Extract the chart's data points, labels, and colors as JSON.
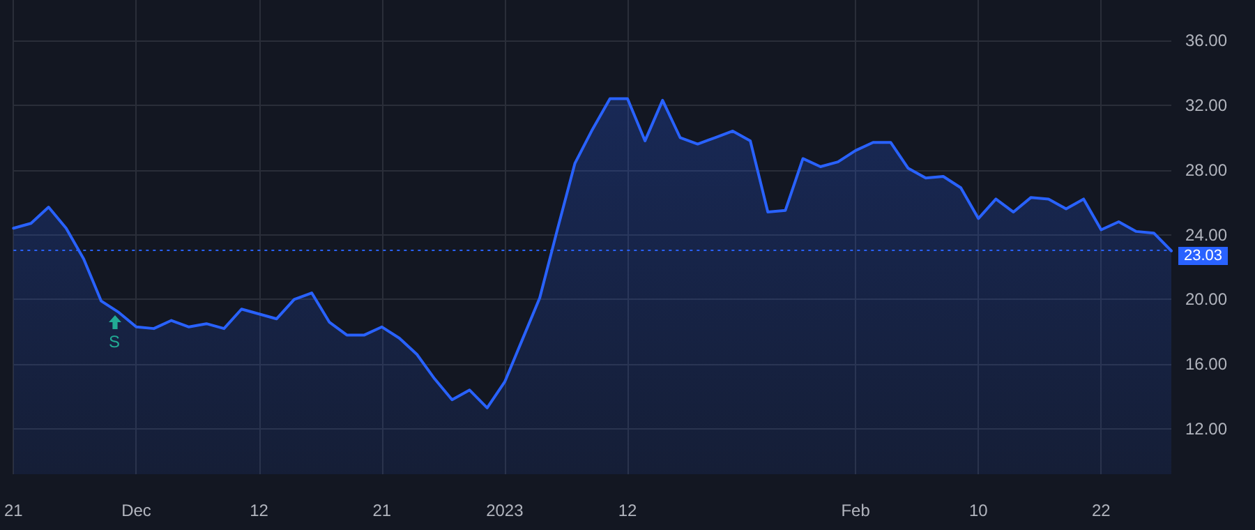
{
  "chart_data": {
    "type": "area",
    "categories": [
      "21",
      null,
      null,
      null,
      null,
      null,
      null,
      "Dec",
      null,
      null,
      null,
      null,
      null,
      null,
      "12",
      null,
      null,
      null,
      null,
      null,
      null,
      "21",
      null,
      null,
      null,
      null,
      null,
      null,
      "2023",
      null,
      null,
      null,
      null,
      null,
      null,
      "12",
      null,
      null,
      null,
      null,
      null,
      null,
      null,
      null,
      null,
      null,
      null,
      null,
      "Feb",
      null,
      null,
      null,
      null,
      null,
      null,
      "10",
      null,
      null,
      null,
      null,
      null,
      null,
      "22",
      null,
      null,
      null,
      null
    ],
    "series": [
      {
        "color": "#2962ff",
        "values": [
          24.4,
          24.7,
          25.7,
          24.4,
          22.5,
          19.9,
          19.2,
          18.3,
          18.2,
          18.7,
          18.3,
          18.5,
          18.2,
          19.4,
          19.1,
          18.8,
          20.0,
          20.4,
          18.6,
          17.8,
          17.8,
          18.3,
          17.6,
          16.6,
          15.1,
          13.8,
          14.4,
          13.3,
          14.9,
          17.5,
          20.1,
          24.3,
          28.4,
          30.5,
          32.4,
          32.4,
          29.8,
          32.3,
          30.0,
          29.6,
          30.0,
          30.4,
          29.8,
          25.4,
          25.5,
          28.7,
          28.2,
          28.5,
          29.2,
          29.7,
          29.7,
          28.1,
          27.5,
          27.6,
          26.9,
          25.0,
          26.2,
          25.4,
          26.3,
          26.2,
          25.6,
          26.2,
          24.3,
          24.8,
          24.2,
          24.1,
          23.0
        ]
      }
    ],
    "ylim": [
      9.2,
      38.5
    ],
    "yticks": [
      {
        "value": 12,
        "label": "12.00"
      },
      {
        "value": 16,
        "label": "16.00"
      },
      {
        "value": 20,
        "label": "20.00"
      },
      {
        "value": 24,
        "label": "24.00"
      },
      {
        "value": 28,
        "label": "28.00"
      },
      {
        "value": 32,
        "label": "32.00"
      },
      {
        "value": 36,
        "label": "36.00"
      }
    ],
    "ref_lines": [
      {
        "axis": "y",
        "value": 23.03,
        "label": "23.03",
        "color": "#2962ff",
        "line_style": "dotted"
      }
    ],
    "annotations": [
      "S"
    ],
    "grid": true,
    "marker": "none",
    "line_style": "solid"
  }
}
